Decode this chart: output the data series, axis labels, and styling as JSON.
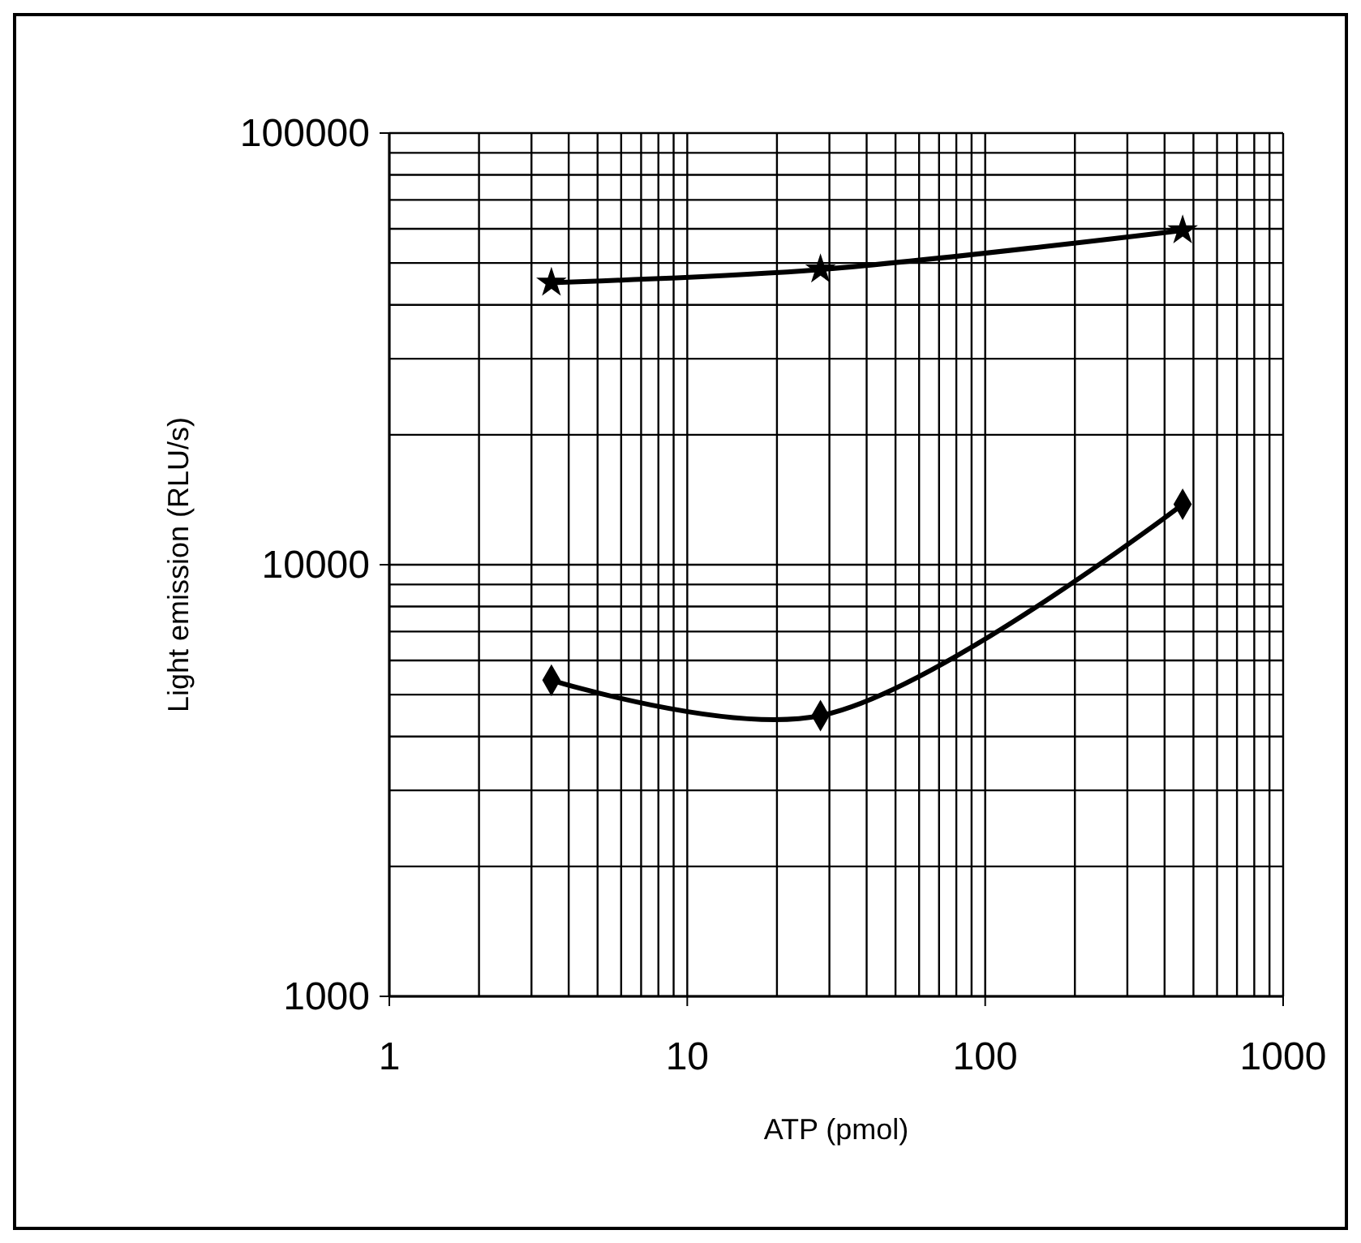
{
  "chart_data": {
    "type": "line",
    "xlabel": "ATP (pmol)",
    "ylabel": "Light emission (RLU/s)",
    "log": "xy",
    "xlim": [
      1,
      1000
    ],
    "xticks": [
      1,
      10,
      100,
      1000
    ],
    "ylim": [
      1000,
      100000
    ],
    "yticks": [
      1000,
      10000,
      100000
    ],
    "grid": true,
    "marker": "diamond",
    "line_style": "solid",
    "series": [
      {
        "color": "#000000",
        "x": [
          3.5,
          28,
          460
        ],
        "values": [
          45000,
          48300,
          59500
        ],
        "marker": "star"
      },
      {
        "color": "#000000",
        "x": [
          3.5,
          28,
          460
        ],
        "values": [
          5400,
          4470,
          13800
        ]
      }
    ]
  }
}
